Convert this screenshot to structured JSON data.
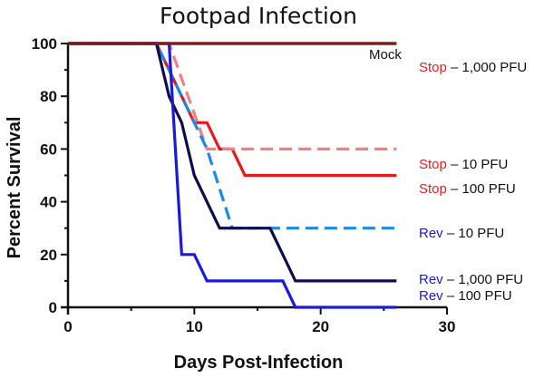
{
  "chart_data": {
    "type": "line",
    "title": "Footpad Infection",
    "xlabel": "Days Post-Infection",
    "ylabel": "Percent Survival",
    "xlim": [
      0,
      30
    ],
    "ylim": [
      0,
      100
    ],
    "x_ticks": [
      0,
      10,
      20,
      30
    ],
    "y_ticks": [
      0,
      20,
      40,
      60,
      80,
      100
    ],
    "series": [
      {
        "name": "Mock",
        "label_parts": {
          "virus": "",
          "dose": "Mock"
        },
        "color": "#7f1a1a",
        "dashed": false,
        "label_color": "#111111",
        "x": [
          0,
          26
        ],
        "y": [
          100,
          100
        ]
      },
      {
        "name": "Stop – 1,000 PFU",
        "label_parts": {
          "virus": "Stop",
          "dose": " – 1,000 PFU"
        },
        "color": "#7f1a1a",
        "dashed": false,
        "label_color": "#ee1c1c",
        "x": [
          0,
          26
        ],
        "y": [
          100,
          100
        ]
      },
      {
        "name": "Stop – 10 PFU",
        "label_parts": {
          "virus": "Stop",
          "dose": " – 10 PFU"
        },
        "color": "#f28080",
        "dashed": true,
        "label_color": "#ee1c1c",
        "x": [
          0,
          8,
          11,
          26
        ],
        "y": [
          100,
          100,
          60,
          60
        ]
      },
      {
        "name": "Stop – 100 PFU",
        "label_parts": {
          "virus": "Stop",
          "dose": " – 100 PFU"
        },
        "color": "#e8191b",
        "dashed": false,
        "label_color": "#ee1c1c",
        "x": [
          0,
          7,
          10,
          11,
          12,
          13,
          14,
          26
        ],
        "y": [
          100,
          100,
          70,
          70,
          60,
          60,
          50,
          50
        ]
      },
      {
        "name": "Rev – 10 PFU",
        "label_parts": {
          "virus": "Rev",
          "dose": " – 10 PFU"
        },
        "color": "#1a8ae6",
        "dashed": true,
        "label_color": "#1a1acc",
        "x": [
          0,
          7,
          11,
          13,
          26
        ],
        "y": [
          100,
          100,
          60,
          30,
          30
        ]
      },
      {
        "name": "Rev – 1,000 PFU",
        "label_parts": {
          "virus": "Rev",
          "dose": " – 1,000 PFU"
        },
        "color": "#0d0d4d",
        "dashed": false,
        "label_color": "#1a1acc",
        "x": [
          0,
          7,
          8,
          9,
          10,
          12,
          16,
          17,
          18,
          26
        ],
        "y": [
          100,
          100,
          80,
          70,
          50,
          30,
          30,
          20,
          10,
          10
        ]
      },
      {
        "name": "Rev – 100 PFU",
        "label_parts": {
          "virus": "Rev",
          "dose": " – 100 PFU"
        },
        "color": "#1a1adb",
        "dashed": false,
        "label_color": "#1a1acc",
        "x": [
          0,
          8,
          9,
          10,
          11,
          17,
          18,
          26
        ],
        "y": [
          100,
          100,
          20,
          20,
          10,
          10,
          0,
          0
        ]
      }
    ]
  }
}
